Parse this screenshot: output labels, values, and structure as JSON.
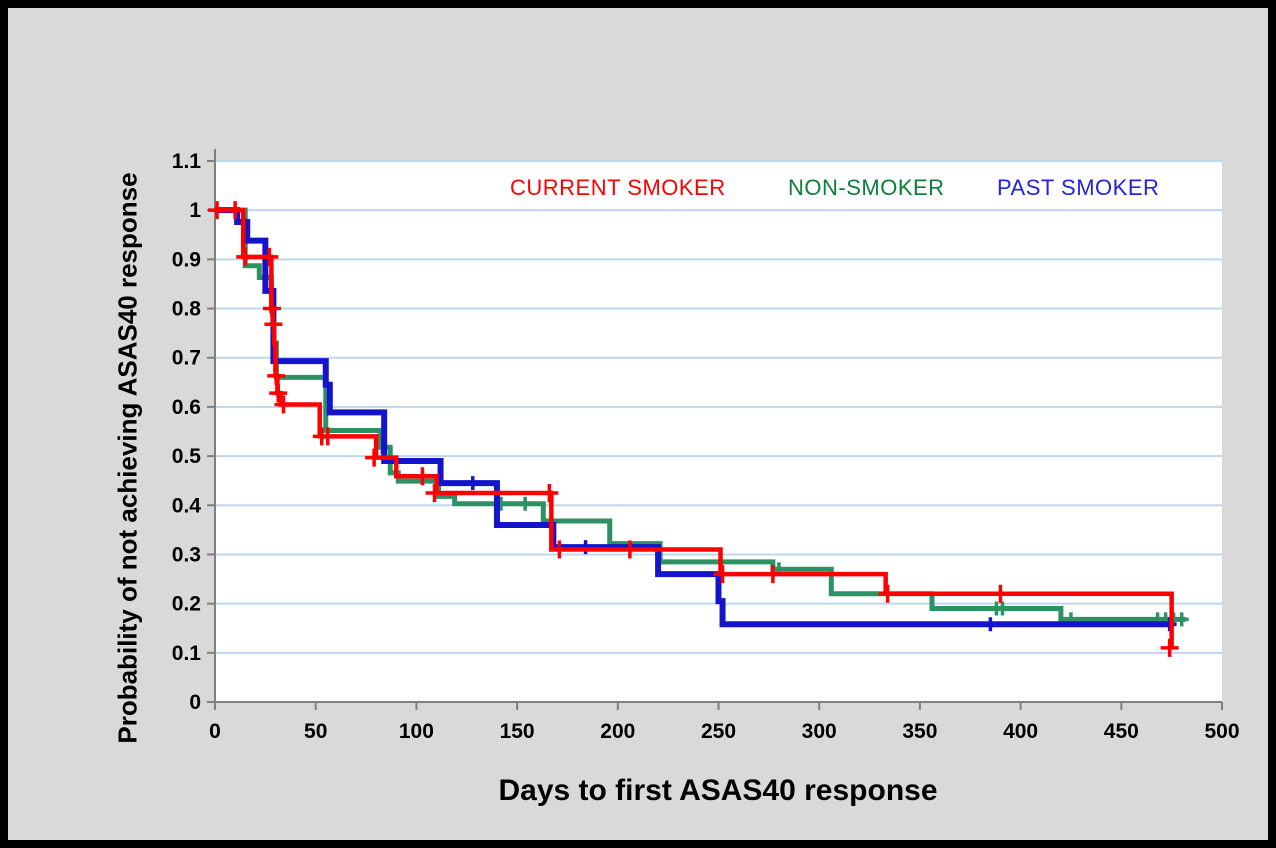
{
  "colors": {
    "frame": "#000000",
    "outer_background": "#d9d9d9",
    "plot_background": "#ffffff",
    "gridline": "#bdd7ee",
    "axis": "#808080",
    "current_smoker": "#ff0000",
    "non_smoker_line": "#2e9164",
    "non_smoker_text": "#0e7d3c",
    "past_smoker_line": "#1414cf",
    "past_smoker_text": "#2323dd"
  },
  "chart_data": {
    "type": "line",
    "subtype": "kaplan-meier-step-curve",
    "title": "",
    "xlabel": "Days to first ASAS40 response",
    "ylabel": "Probability of not achieving ASAS40 response",
    "xlim": [
      0,
      500
    ],
    "ylim": [
      0,
      1.1
    ],
    "x_ticks": [
      "0",
      "50",
      "100",
      "150",
      "200",
      "250",
      "300",
      "350",
      "400",
      "450",
      "500"
    ],
    "y_ticks": [
      "0",
      "0.1",
      "0.2",
      "0.3",
      "0.4",
      "0.5",
      "0.6",
      "0.7",
      "0.8",
      "0.9",
      "1",
      "1.1"
    ],
    "grid": "horizontal gridlines only, light blue",
    "legend_position": "inside top, text-only labels",
    "series": [
      {
        "name": "NON-SMOKER",
        "line_color": "#2e9164",
        "text_color": "#0e7d3c",
        "line_width": 5,
        "steps": [
          [
            0,
            1.0
          ],
          [
            15,
            0.887
          ],
          [
            22,
            0.863
          ],
          [
            28,
            0.795
          ],
          [
            29,
            0.73
          ],
          [
            30.5,
            0.66
          ],
          [
            55,
            0.552
          ],
          [
            82,
            0.518
          ],
          [
            87,
            0.466
          ],
          [
            91,
            0.449
          ],
          [
            111,
            0.418
          ],
          [
            119,
            0.403
          ],
          [
            163,
            0.368
          ],
          [
            196,
            0.322
          ],
          [
            221,
            0.285
          ],
          [
            277,
            0.27
          ],
          [
            306,
            0.22
          ],
          [
            356,
            0.19
          ],
          [
            420,
            0.168
          ],
          [
            482,
            0.168
          ]
        ],
        "censors": [
          [
            83,
            0.518
          ],
          [
            110,
            0.449
          ],
          [
            142,
            0.403
          ],
          [
            154,
            0.403
          ],
          [
            280,
            0.27
          ],
          [
            388,
            0.19
          ],
          [
            391,
            0.19
          ],
          [
            425,
            0.168
          ],
          [
            468,
            0.168
          ],
          [
            472,
            0.168
          ],
          [
            476,
            0.168
          ],
          [
            480,
            0.168
          ]
        ]
      },
      {
        "name": "PAST SMOKER",
        "line_color": "#1414cf",
        "text_color": "#2323dd",
        "line_width": 6,
        "steps": [
          [
            0,
            1.0
          ],
          [
            11,
            0.976
          ],
          [
            16,
            0.938
          ],
          [
            25,
            0.836
          ],
          [
            29,
            0.693
          ],
          [
            55,
            0.645
          ],
          [
            57,
            0.589
          ],
          [
            84,
            0.49
          ],
          [
            112,
            0.445
          ],
          [
            140,
            0.36
          ],
          [
            168,
            0.315
          ],
          [
            220,
            0.26
          ],
          [
            250,
            0.205
          ],
          [
            252,
            0.158
          ],
          [
            476,
            0.158
          ]
        ],
        "censors": [
          [
            128,
            0.445
          ],
          [
            184,
            0.315
          ],
          [
            385,
            0.158
          ],
          [
            474,
            0.158
          ]
        ]
      },
      {
        "name": "CURRENT SMOKER",
        "line_color": "#ff0000",
        "text_color": "#ff0000",
        "line_width": 4.5,
        "steps": [
          [
            0,
            1.0
          ],
          [
            14,
            0.905
          ],
          [
            28,
            0.8
          ],
          [
            28.7,
            0.768
          ],
          [
            29.4,
            0.728
          ],
          [
            30,
            0.663
          ],
          [
            31,
            0.628
          ],
          [
            32.5,
            0.605
          ],
          [
            52,
            0.54
          ],
          [
            80,
            0.497
          ],
          [
            90,
            0.459
          ],
          [
            110,
            0.425
          ],
          [
            167,
            0.31
          ],
          [
            251,
            0.26
          ],
          [
            333,
            0.22
          ],
          [
            475,
            0.11
          ]
        ],
        "censors": [
          [
            1,
            1.0
          ],
          [
            10,
            1.0
          ],
          [
            15,
            0.905
          ],
          [
            27,
            0.905
          ],
          [
            28.3,
            0.8
          ],
          [
            29,
            0.768
          ],
          [
            30.4,
            0.663
          ],
          [
            31.4,
            0.628
          ],
          [
            34,
            0.605
          ],
          [
            53,
            0.54
          ],
          [
            56,
            0.54
          ],
          [
            79,
            0.497
          ],
          [
            103,
            0.459
          ],
          [
            109,
            0.425
          ],
          [
            166,
            0.425
          ],
          [
            171,
            0.31
          ],
          [
            206,
            0.31
          ],
          [
            252,
            0.26
          ],
          [
            277,
            0.26
          ],
          [
            334,
            0.22
          ],
          [
            390,
            0.22
          ],
          [
            474,
            0.11
          ]
        ]
      }
    ]
  },
  "legend": {
    "current_smoker": "CURRENT SMOKER",
    "non_smoker": "NON-SMOKER",
    "past_smoker": "PAST SMOKER"
  }
}
